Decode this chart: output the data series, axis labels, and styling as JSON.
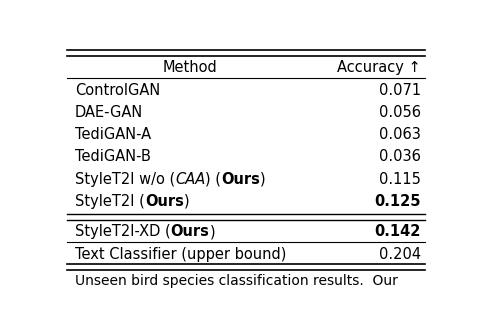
{
  "title_col1": "Method",
  "title_col2": "Accuracy ↑",
  "rows": [
    {
      "method": "ControlGAN",
      "accuracy": "0.071",
      "bold_acc": false,
      "italic_part": null,
      "bold_ours": false
    },
    {
      "method": "DAE-GAN",
      "accuracy": "0.056",
      "bold_acc": false,
      "italic_part": null,
      "bold_ours": false
    },
    {
      "method": "TediGAN-A",
      "accuracy": "0.063",
      "bold_acc": false,
      "italic_part": null,
      "bold_ours": false
    },
    {
      "method": "TediGAN-B",
      "accuracy": "0.036",
      "bold_acc": false,
      "italic_part": null,
      "bold_ours": false
    },
    {
      "method": "StyleT2I w/o (CAA) (Ours)",
      "accuracy": "0.115",
      "bold_acc": false,
      "italic_part": "CAA",
      "bold_ours": true
    },
    {
      "method": "StyleT2I (Ours)",
      "accuracy": "0.125",
      "bold_acc": true,
      "italic_part": null,
      "bold_ours": true
    }
  ],
  "separator_row": {
    "method": "StyleT2I-XD (Ours)",
    "accuracy": "0.142",
    "bold_acc": true,
    "bold_ours": true
  },
  "last_row": {
    "method": "Text Classifier (upper bound)",
    "accuracy": "0.204",
    "bold_acc": false
  },
  "bg_color": "#ffffff",
  "text_color": "#000000",
  "font_size": 10.5,
  "caption": "Unseen bird species classification results.  Our"
}
